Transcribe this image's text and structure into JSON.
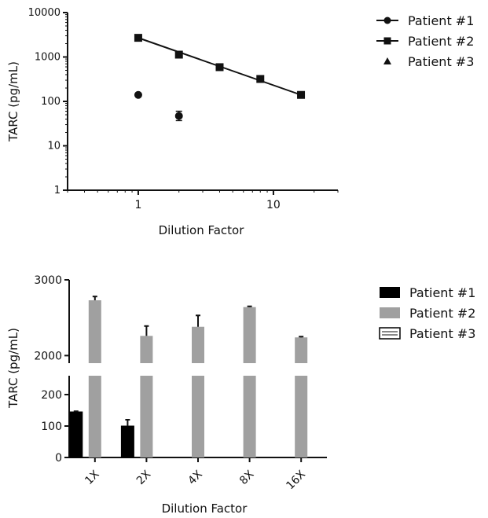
{
  "chart_data": [
    {
      "type": "scatter",
      "xlabel": "Dilution Factor",
      "ylabel": "TARC (pg/mL)",
      "x_scale": "log",
      "y_scale": "log",
      "xlim": [
        0.3,
        30
      ],
      "ylim": [
        1,
        10000
      ],
      "x_ticks": [
        {
          "value": 1,
          "label": "1"
        },
        {
          "value": 10,
          "label": "10"
        }
      ],
      "y_ticks": [
        {
          "value": 1,
          "label": "1"
        },
        {
          "value": 10,
          "label": "10"
        },
        {
          "value": 100,
          "label": "100"
        },
        {
          "value": 1000,
          "label": "1000"
        },
        {
          "value": 10000,
          "label": "10000"
        }
      ],
      "grid": false,
      "legend_position": "right",
      "series": [
        {
          "name": "Patient #1",
          "marker": "circle",
          "points": [
            {
              "x": 1,
              "y": 140
            },
            {
              "x": 2,
              "y": 47,
              "err_low": 37,
              "err_high": 60
            }
          ],
          "fit_line": false
        },
        {
          "name": "Patient #2",
          "marker": "square",
          "points": [
            {
              "x": 1,
              "y": 2700
            },
            {
              "x": 2,
              "y": 1130
            },
            {
              "x": 4,
              "y": 590
            },
            {
              "x": 8,
              "y": 320
            },
            {
              "x": 16,
              "y": 140
            }
          ],
          "fit_line": true,
          "fit_line_endpoints": [
            {
              "x": 1,
              "y": 2700
            },
            {
              "x": 16,
              "y": 140
            }
          ]
        },
        {
          "name": "Patient #3",
          "marker": "triangle",
          "points": [],
          "fit_line": false
        }
      ]
    },
    {
      "type": "bar",
      "xlabel": "Dilution Factor",
      "ylabel": "TARC (pg/mL)",
      "categories": [
        "1X",
        "2X",
        "4X",
        "8X",
        "16X"
      ],
      "axis_break": true,
      "ylim_lower": [
        0,
        260
      ],
      "ylim_upper": [
        1900,
        3000
      ],
      "y_ticks_lower": [
        0,
        100,
        200
      ],
      "y_ticks_upper": [
        2000,
        3000
      ],
      "legend_position": "right",
      "series": [
        {
          "name": "Patient #1",
          "color": "#000000",
          "values": [
            145,
            100,
            null,
            null,
            null
          ],
          "errors": [
            2,
            20,
            null,
            null,
            null
          ]
        },
        {
          "name": "Patient #2",
          "color": "#a0a0a0",
          "values": [
            2730,
            2260,
            2380,
            2640,
            2240
          ],
          "errors": [
            50,
            130,
            150,
            10,
            10
          ]
        },
        {
          "name": "Patient #3",
          "color": "#ffffff",
          "values": [
            null,
            null,
            null,
            null,
            null
          ],
          "errors": [
            null,
            null,
            null,
            null,
            null
          ]
        }
      ]
    }
  ]
}
